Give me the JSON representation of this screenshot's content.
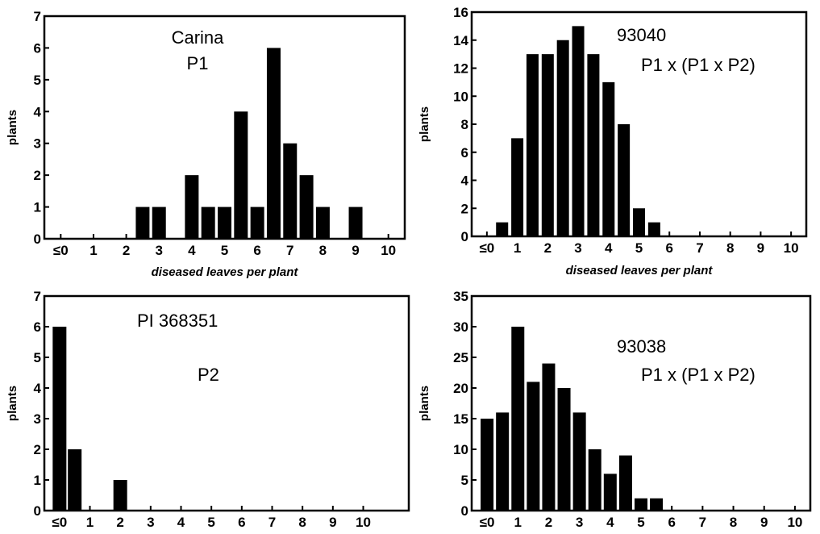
{
  "chart_data": [
    {
      "type": "bar",
      "ylabel": "plants",
      "xlabel": "diseased leaves per plant",
      "ylim": [
        0,
        7
      ],
      "yticks": [
        "0",
        "1",
        "2",
        "3",
        "4",
        "5",
        "6",
        "7"
      ],
      "xlim": [
        -0.5,
        10.5
      ],
      "xticks": [
        "≤0",
        "1",
        "2",
        "3",
        "4",
        "5",
        "6",
        "7",
        "8",
        "9",
        "10"
      ],
      "x": [
        2.5,
        3,
        4,
        4.5,
        5,
        5.5,
        6,
        6.5,
        7,
        7.5,
        8,
        9
      ],
      "values": [
        1,
        1,
        2,
        1,
        1,
        4,
        1,
        6,
        3,
        2,
        1,
        1
      ],
      "annotations": [
        "Carina",
        "P1"
      ]
    },
    {
      "type": "bar",
      "ylabel": "plants",
      "xlabel": "diseased leaves per plant",
      "ylim": [
        0,
        16
      ],
      "yticks": [
        "0",
        "2",
        "4",
        "6",
        "8",
        "10",
        "12",
        "14",
        "16"
      ],
      "xlim": [
        -0.5,
        10.5
      ],
      "xticks": [
        "≤0",
        "1",
        "2",
        "3",
        "4",
        "5",
        "6",
        "7",
        "8",
        "9",
        "10"
      ],
      "x": [
        0.5,
        1,
        1.5,
        2,
        2.5,
        3,
        3.5,
        4,
        4.5,
        5,
        5.5
      ],
      "values": [
        1,
        7,
        13,
        13,
        14,
        15,
        13,
        11,
        8,
        2,
        1
      ],
      "annotations": [
        "93040",
        "P1 x (P1 x P2)"
      ]
    },
    {
      "type": "bar",
      "ylabel": "plants",
      "xlabel": "",
      "ylim": [
        0,
        7
      ],
      "yticks": [
        "0",
        "1",
        "2",
        "3",
        "4",
        "5",
        "6",
        "7"
      ],
      "xlim": [
        -0.5,
        11.5
      ],
      "xticks": [
        "≤0",
        "1",
        "2",
        "3",
        "4",
        "5",
        "6",
        "7",
        "8",
        "9",
        "10"
      ],
      "x": [
        0,
        0.5,
        2
      ],
      "values": [
        6,
        2,
        1
      ],
      "annotations": [
        "PI 368351",
        "P2"
      ]
    },
    {
      "type": "bar",
      "ylabel": "plants",
      "xlabel": "",
      "ylim": [
        0,
        35
      ],
      "yticks": [
        "0",
        "5",
        "10",
        "15",
        "20",
        "25",
        "30",
        "35"
      ],
      "xlim": [
        -0.5,
        10.5
      ],
      "xticks": [
        "≤0",
        "1",
        "2",
        "3",
        "4",
        "5",
        "6",
        "7",
        "8",
        "9",
        "10"
      ],
      "x": [
        0,
        0.5,
        1,
        1.5,
        2,
        2.5,
        3,
        3.5,
        4,
        4.5,
        5,
        5.5
      ],
      "values": [
        15,
        16,
        30,
        21,
        24,
        20,
        16,
        10,
        6,
        9,
        2,
        2
      ],
      "annotations": [
        "93038",
        "P1 x (P1 x P2)"
      ]
    }
  ]
}
